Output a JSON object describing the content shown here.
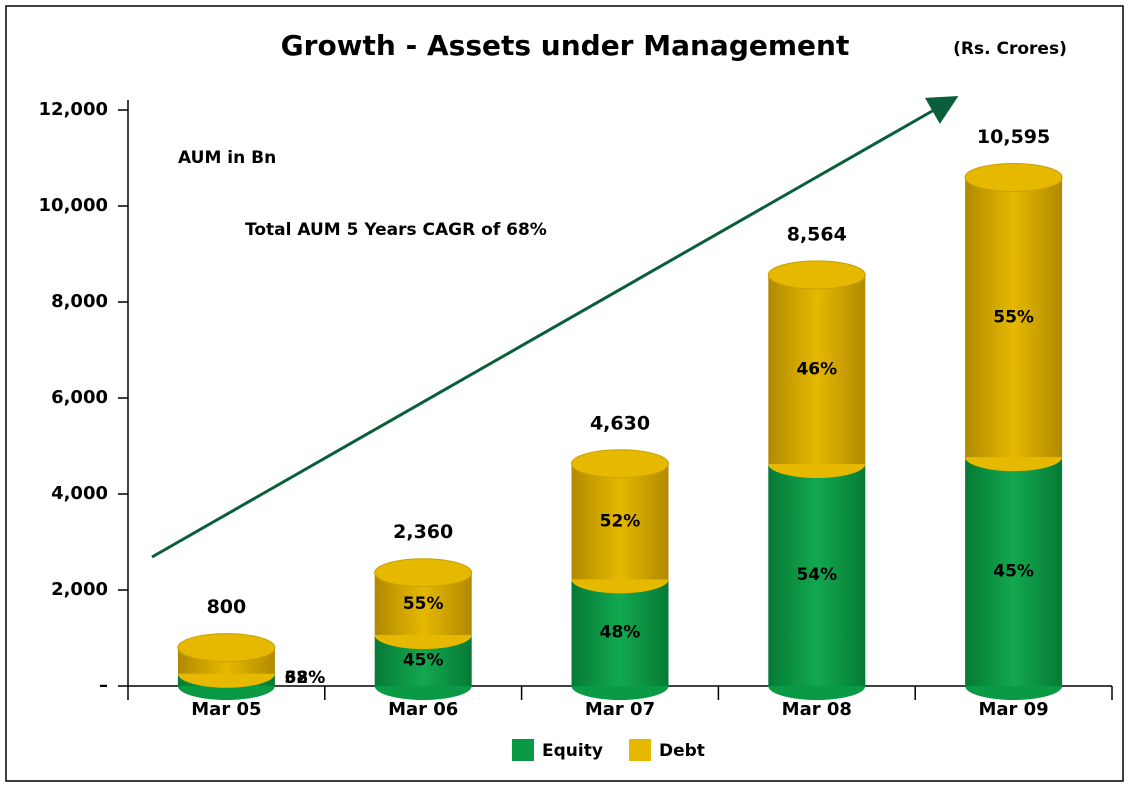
{
  "chart_data": {
    "type": "stacked_bar",
    "title": "Growth - Assets under Management",
    "subtitle": "(Rs. Crores)",
    "annotations": [
      "AUM in Bn",
      "Total AUM 5 Years CAGR of 68%"
    ],
    "categories": [
      "Mar 05",
      "Mar 06",
      "Mar 07",
      "Mar 08",
      "Mar 09"
    ],
    "series": [
      {
        "name": "Equity",
        "color": "#0a9a46",
        "values": [
          256,
          1062,
          2222,
          4625,
          4768
        ],
        "value_labels": [
          "32%",
          "45%",
          "48%",
          "54%",
          "45%"
        ]
      },
      {
        "name": "Debt",
        "color": "#e6b800",
        "values": [
          544,
          1298,
          2408,
          3939,
          5827
        ],
        "value_labels": [
          "68%",
          "55%",
          "52%",
          "46%",
          "55%"
        ]
      }
    ],
    "totals": [
      800,
      2360,
      4630,
      8564,
      10595
    ],
    "total_labels": [
      "800",
      "2,360",
      "4,630",
      "8,564",
      "10,595"
    ],
    "ylim": [
      0,
      12000
    ],
    "yticks": [
      {
        "value": 0,
        "label": "–"
      },
      {
        "value": 2000,
        "label": "2,000"
      },
      {
        "value": 4000,
        "label": "4,000"
      },
      {
        "value": 6000,
        "label": "6,000"
      },
      {
        "value": 8000,
        "label": "8,000"
      },
      {
        "value": 10000,
        "label": "10,000"
      },
      {
        "value": 12000,
        "label": "12,000"
      }
    ],
    "legend": "bottom"
  }
}
